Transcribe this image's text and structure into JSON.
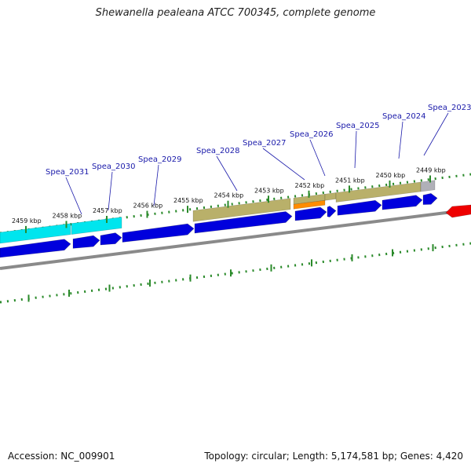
{
  "title": "Shewanella pealeana ATCC 700345, complete genome",
  "footer": {
    "accession": "Accession: NC_009901",
    "summary": "Topology: circular; Length: 5,174,581 bp; Genes: 4,420"
  },
  "colors": {
    "cds": "#0000dd",
    "rna_cyan": "#00e5ee",
    "olive": "#b9b06a",
    "orange": "#ff8c00",
    "grey_feature": "#b0b0b8",
    "red_feature": "#ee0000",
    "backbone": "#8a8a8a",
    "tick_green": "#2a8a2a",
    "label_blue": "#1a1aaa"
  },
  "scale_ticks": [
    {
      "label": "2459 kbp",
      "kbp": 2459
    },
    {
      "label": "2458 kbp",
      "kbp": 2458
    },
    {
      "label": "2457 kbp",
      "kbp": 2457
    },
    {
      "label": "2456 kbp",
      "kbp": 2456
    },
    {
      "label": "2455 kbp",
      "kbp": 2455
    },
    {
      "label": "2454 kbp",
      "kbp": 2454
    },
    {
      "label": "2453 kbp",
      "kbp": 2453
    },
    {
      "label": "2452 kbp",
      "kbp": 2452
    },
    {
      "label": "2451 kbp",
      "kbp": 2451
    },
    {
      "label": "2450 kbp",
      "kbp": 2450
    },
    {
      "label": "2449 kbp",
      "kbp": 2449
    }
  ],
  "gene_labels": [
    {
      "name": "Spea_2031"
    },
    {
      "name": "Spea_2030"
    },
    {
      "name": "Spea_2029"
    },
    {
      "name": "Spea_2028"
    },
    {
      "name": "Spea_2027"
    },
    {
      "name": "Spea_2026"
    },
    {
      "name": "Spea_2025"
    },
    {
      "name": "Spea_2024"
    },
    {
      "name": "Spea_2023"
    }
  ]
}
